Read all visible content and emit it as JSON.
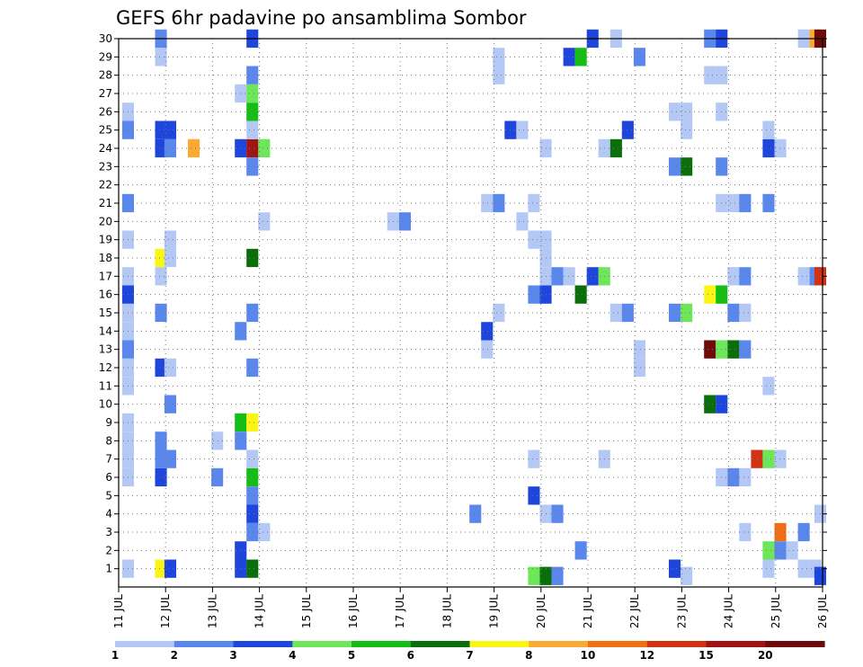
{
  "chart_data": {
    "type": "heatmap",
    "title": "GEFS 6hr padavine po ansamblima Sombor",
    "x_tick_labels": [
      "11 JUL",
      "12 JUL",
      "13 JUL",
      "14 JUL",
      "15 JUL",
      "16 JUL",
      "17 JUL",
      "18 JUL",
      "19 JUL",
      "20 JUL",
      "21 JUL",
      "22 JUL",
      "23 JUL",
      "24 JUL",
      "25 JUL",
      "26 JUL"
    ],
    "y_tick_labels": [
      "1",
      "2",
      "3",
      "4",
      "5",
      "6",
      "7",
      "8",
      "9",
      "10",
      "11",
      "12",
      "13",
      "14",
      "15",
      "16",
      "17",
      "18",
      "19",
      "20",
      "21",
      "22",
      "23",
      "24",
      "25",
      "26",
      "27",
      "28",
      "29",
      "30"
    ],
    "xlim_days": [
      11,
      26
    ],
    "ylim": [
      0,
      30
    ],
    "grid": true,
    "colorbar": {
      "levels": [
        "1",
        "2",
        "3",
        "4",
        "5",
        "6",
        "7",
        "8",
        "10",
        "12",
        "15",
        "20"
      ],
      "colors": [
        "#b4c8f5",
        "#5a87ec",
        "#1e46dc",
        "#6ee65a",
        "#14be14",
        "#0a6e0a",
        "#faf514",
        "#faaa32",
        "#f06e14",
        "#d23214",
        "#a01414",
        "#6e0a0a"
      ]
    },
    "cells": [
      [
        11.2,
        1,
        0
      ],
      [
        11.2,
        6,
        0
      ],
      [
        11.2,
        7,
        0
      ],
      [
        11.2,
        8,
        0
      ],
      [
        11.2,
        9,
        0
      ],
      [
        11.2,
        11,
        0
      ],
      [
        11.2,
        12,
        0
      ],
      [
        11.2,
        13,
        1
      ],
      [
        11.2,
        14,
        0
      ],
      [
        11.2,
        15,
        0
      ],
      [
        11.2,
        16,
        2
      ],
      [
        11.2,
        17,
        0
      ],
      [
        11.2,
        19,
        0
      ],
      [
        11.2,
        21,
        1
      ],
      [
        11.2,
        25,
        1
      ],
      [
        11.2,
        26,
        0
      ],
      [
        11.9,
        1,
        6
      ],
      [
        11.9,
        6,
        2
      ],
      [
        11.9,
        7,
        1
      ],
      [
        11.9,
        8,
        1
      ],
      [
        11.9,
        12,
        2
      ],
      [
        11.9,
        15,
        1
      ],
      [
        11.9,
        17,
        0
      ],
      [
        11.9,
        18,
        6
      ],
      [
        11.9,
        24,
        2
      ],
      [
        11.9,
        25,
        2
      ],
      [
        11.9,
        29,
        0
      ],
      [
        11.9,
        30,
        1
      ],
      [
        12.1,
        1,
        2
      ],
      [
        12.1,
        7,
        1
      ],
      [
        12.1,
        10,
        1
      ],
      [
        12.1,
        12,
        0
      ],
      [
        12.1,
        18,
        0
      ],
      [
        12.1,
        19,
        0
      ],
      [
        12.1,
        24,
        1
      ],
      [
        12.1,
        25,
        2
      ],
      [
        12.6,
        24,
        7
      ],
      [
        13.1,
        6,
        1
      ],
      [
        13.1,
        8,
        0
      ],
      [
        13.6,
        1,
        2
      ],
      [
        13.6,
        2,
        2
      ],
      [
        13.6,
        8,
        1
      ],
      [
        13.6,
        9,
        4
      ],
      [
        13.6,
        14,
        1
      ],
      [
        13.6,
        24,
        2
      ],
      [
        13.6,
        27,
        0
      ],
      [
        13.85,
        1,
        5
      ],
      [
        13.85,
        3,
        1
      ],
      [
        13.85,
        4,
        2
      ],
      [
        13.85,
        5,
        1
      ],
      [
        13.85,
        6,
        4
      ],
      [
        13.85,
        7,
        0
      ],
      [
        13.85,
        9,
        6
      ],
      [
        13.85,
        12,
        1
      ],
      [
        13.85,
        15,
        1
      ],
      [
        13.85,
        18,
        5
      ],
      [
        13.85,
        23,
        1
      ],
      [
        13.85,
        24,
        10
      ],
      [
        13.85,
        25,
        0
      ],
      [
        13.85,
        26,
        4
      ],
      [
        13.85,
        27,
        3
      ],
      [
        13.85,
        28,
        1
      ],
      [
        13.85,
        30,
        2
      ],
      [
        14.1,
        3,
        0
      ],
      [
        14.1,
        20,
        0
      ],
      [
        14.1,
        24,
        3
      ],
      [
        16.85,
        20,
        0
      ],
      [
        17.1,
        20,
        1
      ],
      [
        18.6,
        4,
        1
      ],
      [
        18.85,
        13,
        0
      ],
      [
        18.85,
        14,
        2
      ],
      [
        18.85,
        21,
        0
      ],
      [
        19.1,
        21,
        1
      ],
      [
        19.1,
        15,
        0
      ],
      [
        19.1,
        28,
        0
      ],
      [
        19.1,
        29,
        0
      ],
      [
        19.35,
        25,
        2
      ],
      [
        19.6,
        25,
        0
      ],
      [
        19.6,
        20,
        0
      ],
      [
        19.85,
        0.6,
        3
      ],
      [
        19.85,
        5,
        2
      ],
      [
        19.85,
        7,
        0
      ],
      [
        19.85,
        16,
        1
      ],
      [
        19.85,
        19,
        0
      ],
      [
        19.85,
        21,
        0
      ],
      [
        20.1,
        0.6,
        5
      ],
      [
        20.1,
        4,
        0
      ],
      [
        20.1,
        16,
        2
      ],
      [
        20.1,
        17,
        0
      ],
      [
        20.1,
        18,
        0
      ],
      [
        20.1,
        19,
        0
      ],
      [
        20.1,
        24,
        0
      ],
      [
        20.35,
        0.6,
        1
      ],
      [
        20.35,
        4,
        1
      ],
      [
        20.35,
        17,
        1
      ],
      [
        20.6,
        17,
        0
      ],
      [
        20.6,
        29,
        2
      ],
      [
        20.85,
        2,
        1
      ],
      [
        20.85,
        16,
        5
      ],
      [
        20.85,
        29,
        4
      ],
      [
        21.1,
        17,
        2
      ],
      [
        21.1,
        30,
        2
      ],
      [
        21.35,
        7,
        0
      ],
      [
        21.35,
        17,
        3
      ],
      [
        21.35,
        24,
        0
      ],
      [
        21.6,
        15,
        0
      ],
      [
        21.6,
        24,
        5
      ],
      [
        21.6,
        30,
        0
      ],
      [
        21.85,
        15,
        1
      ],
      [
        21.85,
        25,
        2
      ],
      [
        22.1,
        12,
        0
      ],
      [
        22.1,
        13,
        0
      ],
      [
        22.1,
        29,
        1
      ],
      [
        22.85,
        1,
        2
      ],
      [
        22.85,
        15,
        1
      ],
      [
        22.85,
        23,
        1
      ],
      [
        22.85,
        26,
        0
      ],
      [
        23.1,
        0.6,
        0
      ],
      [
        23.1,
        15,
        3
      ],
      [
        23.1,
        23,
        5
      ],
      [
        23.1,
        25,
        0
      ],
      [
        23.1,
        26,
        0
      ],
      [
        23.6,
        13,
        11
      ],
      [
        23.6,
        16,
        6
      ],
      [
        23.6,
        10,
        5
      ],
      [
        23.6,
        28,
        0
      ],
      [
        23.6,
        30,
        1
      ],
      [
        23.85,
        6,
        0
      ],
      [
        23.85,
        10,
        2
      ],
      [
        23.85,
        13,
        3
      ],
      [
        23.85,
        16,
        4
      ],
      [
        23.85,
        21,
        0
      ],
      [
        23.85,
        23,
        1
      ],
      [
        23.85,
        26,
        0
      ],
      [
        23.85,
        28,
        0
      ],
      [
        23.85,
        30,
        2
      ],
      [
        24.1,
        6,
        1
      ],
      [
        24.1,
        13,
        5
      ],
      [
        24.1,
        15,
        1
      ],
      [
        24.1,
        17,
        0
      ],
      [
        24.1,
        21,
        0
      ],
      [
        24.35,
        3,
        0
      ],
      [
        24.35,
        6,
        0
      ],
      [
        24.35,
        13,
        1
      ],
      [
        24.35,
        15,
        0
      ],
      [
        24.35,
        17,
        1
      ],
      [
        24.35,
        21,
        1
      ],
      [
        24.6,
        7,
        9
      ],
      [
        24.85,
        1,
        0
      ],
      [
        24.85,
        2,
        3
      ],
      [
        24.85,
        7,
        3
      ],
      [
        24.85,
        11,
        0
      ],
      [
        24.85,
        21,
        1
      ],
      [
        24.85,
        24,
        2
      ],
      [
        24.85,
        25,
        0
      ],
      [
        25.1,
        2,
        1
      ],
      [
        25.1,
        3,
        8
      ],
      [
        25.1,
        7,
        0
      ],
      [
        25.1,
        24,
        0
      ],
      [
        25.35,
        2,
        0
      ],
      [
        25.6,
        1,
        0
      ],
      [
        25.6,
        3,
        1
      ],
      [
        25.6,
        17,
        0
      ],
      [
        25.6,
        30,
        0
      ],
      [
        25.85,
        1,
        0
      ],
      [
        25.85,
        17,
        1
      ],
      [
        25.85,
        30,
        7
      ],
      [
        25.95,
        0.6,
        2
      ],
      [
        25.95,
        4,
        0
      ],
      [
        25.95,
        17,
        9
      ],
      [
        25.95,
        30,
        11
      ]
    ]
  }
}
